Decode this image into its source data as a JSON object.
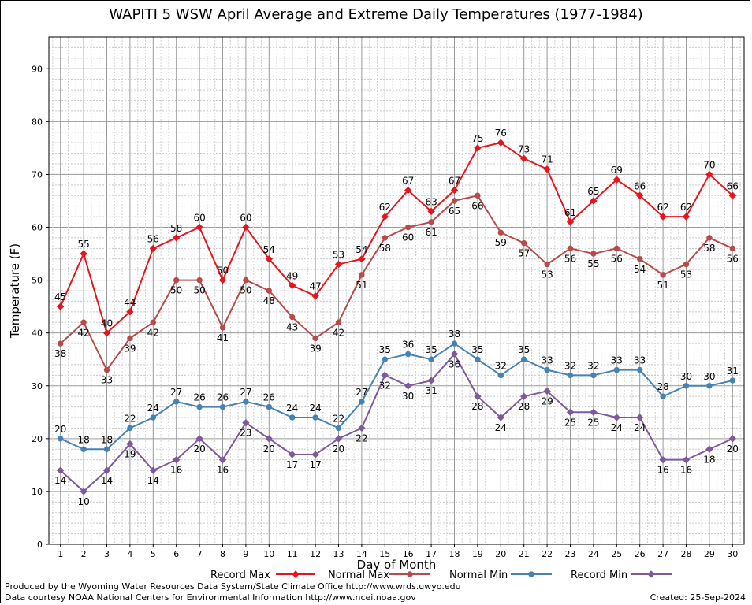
{
  "chart_data": {
    "type": "line",
    "title": "WAPITI 5 WSW April Average and Extreme Daily Temperatures (1977-1984)",
    "xlabel": "Day of Month",
    "ylabel": "Temperature (F)",
    "x": [
      1,
      2,
      3,
      4,
      5,
      6,
      7,
      8,
      9,
      10,
      11,
      12,
      13,
      14,
      15,
      16,
      17,
      18,
      19,
      20,
      21,
      22,
      23,
      24,
      25,
      26,
      27,
      28,
      29,
      30
    ],
    "xlim": [
      0.5,
      30.5
    ],
    "ylim": [
      0,
      96
    ],
    "yticks": [
      0,
      10,
      20,
      30,
      40,
      50,
      60,
      70,
      80,
      90
    ],
    "grid": true,
    "legend_position": "bottom",
    "series": [
      {
        "name": "Record Max",
        "color": "#e8141c",
        "marker": "diamond",
        "values": [
          45,
          55,
          40,
          44,
          56,
          58,
          60,
          50,
          60,
          54,
          49,
          47,
          53,
          54,
          62,
          67,
          63,
          67,
          75,
          76,
          73,
          71,
          61,
          65,
          69,
          66,
          62,
          62,
          70,
          66
        ]
      },
      {
        "name": "Normal Max",
        "color": "#b84a4a",
        "marker": "circle",
        "values": [
          38,
          42,
          33,
          39,
          42,
          50,
          50,
          41,
          50,
          48,
          43,
          39,
          42,
          51,
          58,
          60,
          61,
          65,
          66,
          59,
          57,
          53,
          56,
          55,
          56,
          54,
          51,
          53,
          58,
          56
        ]
      },
      {
        "name": "Normal Min",
        "color": "#4682b4",
        "marker": "circle",
        "values": [
          20,
          18,
          18,
          22,
          24,
          27,
          26,
          26,
          27,
          26,
          24,
          24,
          22,
          27,
          35,
          36,
          35,
          38,
          35,
          32,
          35,
          33,
          32,
          32,
          33,
          33,
          28,
          30,
          30,
          31
        ]
      },
      {
        "name": "Record Min",
        "color": "#7e5a9b",
        "marker": "diamond",
        "values": [
          14,
          10,
          14,
          19,
          14,
          16,
          20,
          16,
          23,
          20,
          17,
          17,
          20,
          22,
          32,
          30,
          31,
          36,
          28,
          24,
          28,
          29,
          25,
          25,
          24,
          24,
          16,
          16,
          18,
          20
        ]
      }
    ]
  },
  "footer": {
    "produced_by": "Produced by the Wyoming Water Resources Data System/State Climate Office http://www.wrds.uwyo.edu",
    "courtesy": "Data courtesy NOAA National Centers for Environmental Information http://www.ncei.noaa.gov",
    "created": "Created: 25-Sep-2024"
  }
}
